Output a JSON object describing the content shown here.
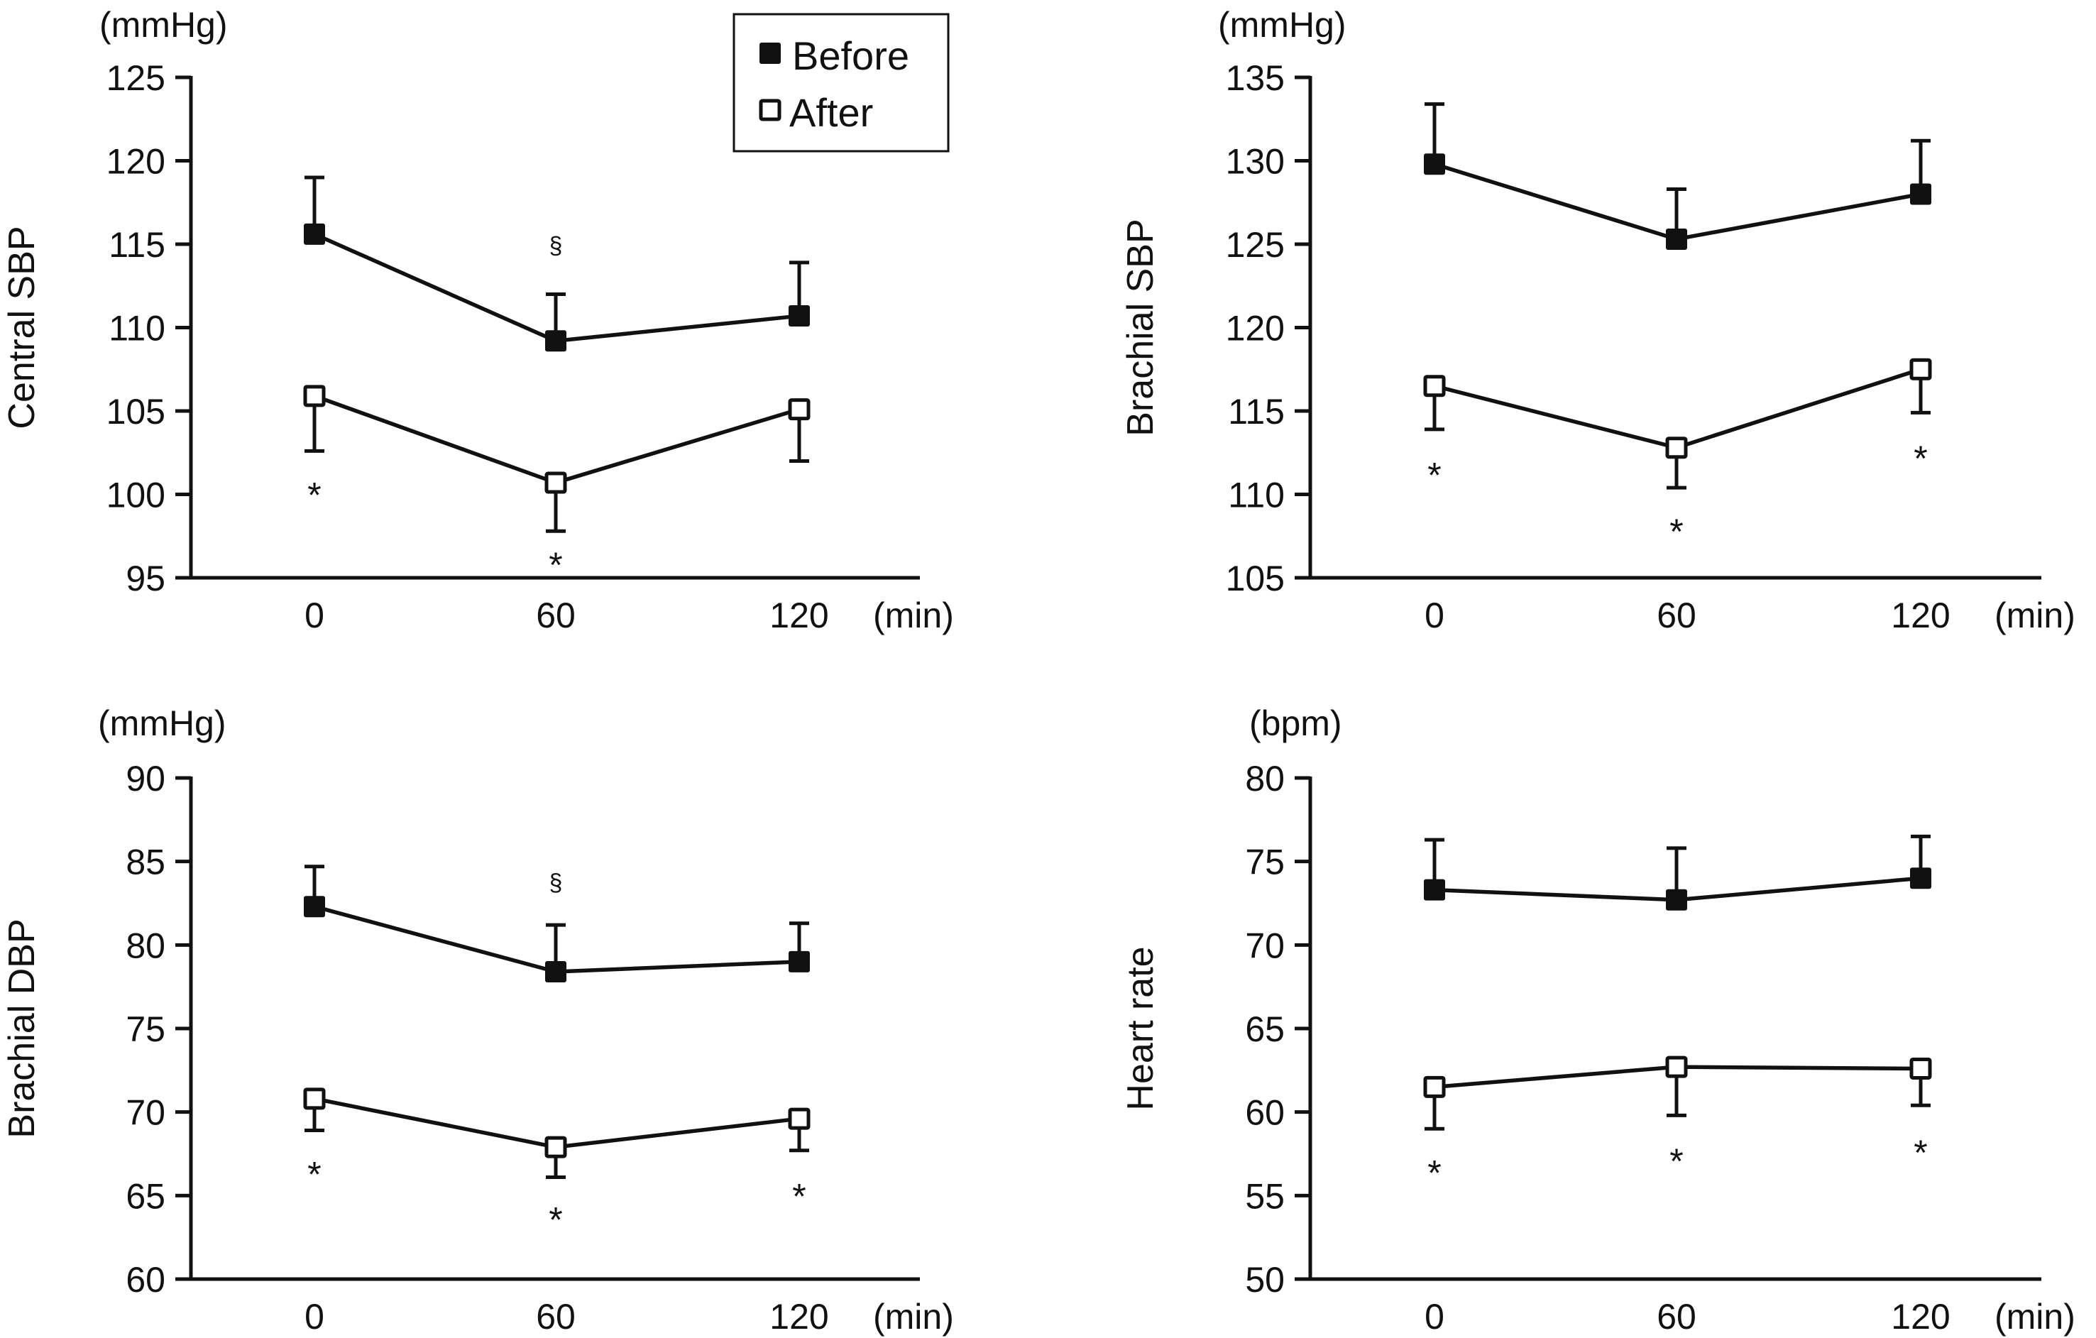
{
  "legend": {
    "items": [
      {
        "label": "Before",
        "marker": "filled-square"
      },
      {
        "label": "After",
        "marker": "open-square"
      }
    ]
  },
  "colors": {
    "ink": "#111111",
    "background": "#ffffff"
  },
  "chart_data": [
    {
      "type": "line",
      "title": "",
      "ylabel": "Central SBP",
      "unit": "(mmHg)",
      "xlabel": "(min)",
      "categories": [
        "0",
        "60",
        "120"
      ],
      "ylim": [
        95,
        125
      ],
      "yticks": [
        "95",
        "100",
        "105",
        "110",
        "115",
        "120",
        "125"
      ],
      "grid": false,
      "series": [
        {
          "name": "Before",
          "marker": "filled-square",
          "values": [
            115.6,
            109.2,
            110.7
          ],
          "error_upper": [
            119.0,
            112.0,
            113.9
          ]
        },
        {
          "name": "After",
          "marker": "open-square",
          "values": [
            105.9,
            100.7,
            105.1
          ],
          "error_lower": [
            102.6,
            97.8,
            102.0
          ]
        }
      ],
      "annotations": [
        {
          "text": "§",
          "category": "60",
          "y": 115.2,
          "small": true
        },
        {
          "text": "*",
          "category": "0",
          "y": 100.0
        },
        {
          "text": "*",
          "category": "60",
          "y": 95.8
        }
      ],
      "legend": "top-right"
    },
    {
      "type": "line",
      "title": "",
      "ylabel": "Brachial SBP",
      "unit": "(mmHg)",
      "xlabel": "(min)",
      "categories": [
        "0",
        "60",
        "120"
      ],
      "ylim": [
        105,
        135
      ],
      "yticks": [
        "105",
        "110",
        "115",
        "120",
        "125",
        "130",
        "135"
      ],
      "grid": false,
      "series": [
        {
          "name": "Before",
          "marker": "filled-square",
          "values": [
            129.8,
            125.3,
            128.0
          ],
          "error_upper": [
            133.4,
            128.3,
            131.2
          ]
        },
        {
          "name": "After",
          "marker": "open-square",
          "values": [
            116.5,
            112.8,
            117.5
          ],
          "error_lower": [
            113.9,
            110.4,
            114.9
          ]
        }
      ],
      "annotations": [
        {
          "text": "*",
          "category": "0",
          "y": 111.2
        },
        {
          "text": "*",
          "category": "60",
          "y": 107.8
        },
        {
          "text": "*",
          "category": "120",
          "y": 112.2
        }
      ]
    },
    {
      "type": "line",
      "title": "",
      "ylabel": "Brachial DBP",
      "unit": "(mmHg)",
      "xlabel": "(min)",
      "categories": [
        "0",
        "60",
        "120"
      ],
      "ylim": [
        60,
        90
      ],
      "yticks": [
        "60",
        "65",
        "70",
        "75",
        "80",
        "85",
        "90"
      ],
      "grid": false,
      "series": [
        {
          "name": "Before",
          "marker": "filled-square",
          "values": [
            82.3,
            78.4,
            79.0
          ],
          "error_upper": [
            84.7,
            81.2,
            81.3
          ]
        },
        {
          "name": "After",
          "marker": "open-square",
          "values": [
            70.8,
            67.9,
            69.6
          ],
          "error_lower": [
            68.9,
            66.1,
            67.7
          ]
        }
      ],
      "annotations": [
        {
          "text": "§",
          "category": "60",
          "y": 84.0,
          "small": true
        },
        {
          "text": "*",
          "category": "0",
          "y": 66.3
        },
        {
          "text": "*",
          "category": "60",
          "y": 63.6
        },
        {
          "text": "*",
          "category": "120",
          "y": 65.0
        }
      ]
    },
    {
      "type": "line",
      "title": "",
      "ylabel": "Heart rate",
      "unit": "(bpm)",
      "xlabel": "(min)",
      "categories": [
        "0",
        "60",
        "120"
      ],
      "ylim": [
        50,
        80
      ],
      "yticks": [
        "50",
        "55",
        "60",
        "65",
        "70",
        "75",
        "80"
      ],
      "grid": false,
      "series": [
        {
          "name": "Before",
          "marker": "filled-square",
          "values": [
            73.3,
            72.7,
            74.0
          ],
          "error_upper": [
            76.3,
            75.8,
            76.5
          ]
        },
        {
          "name": "After",
          "marker": "open-square",
          "values": [
            61.5,
            62.7,
            62.6
          ],
          "error_lower": [
            59.0,
            59.8,
            60.4
          ]
        }
      ],
      "annotations": [
        {
          "text": "*",
          "category": "0",
          "y": 56.4
        },
        {
          "text": "*",
          "category": "60",
          "y": 57.1
        },
        {
          "text": "*",
          "category": "120",
          "y": 57.6
        }
      ]
    }
  ]
}
